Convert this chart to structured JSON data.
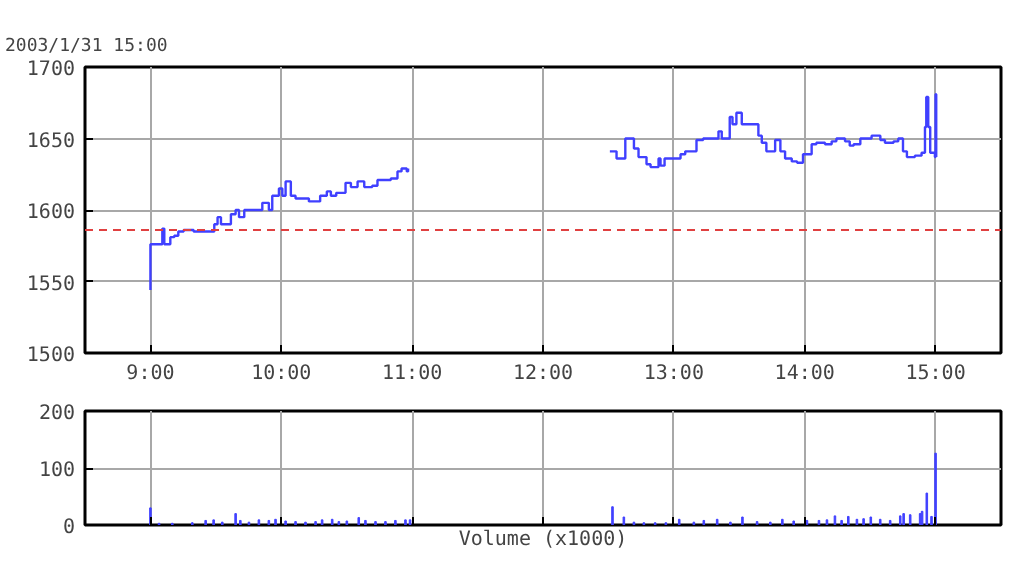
{
  "chart_data": [
    {
      "type": "step",
      "title": "2003/1/31 15:00",
      "color": "#4040ff",
      "x": [
        9.0,
        9.0,
        9.055,
        9.091,
        9.106,
        9.152,
        9.182,
        9.213,
        9.254,
        9.33,
        9.488,
        9.513,
        9.539,
        9.615,
        9.651,
        9.677,
        9.717,
        9.855,
        9.905,
        9.931,
        9.982,
        10.008,
        10.033,
        10.073,
        10.109,
        10.211,
        10.297,
        10.348,
        10.379,
        10.42,
        10.491,
        10.532,
        10.583,
        10.634,
        10.695,
        10.735,
        10.837,
        10.888,
        10.919,
        10.959,
        10.969,
        11.5,
        12.511,
        12.562,
        12.629,
        12.695,
        12.73,
        12.791,
        12.822,
        12.883,
        12.898,
        12.929,
        13.051,
        13.087,
        13.173,
        13.224,
        13.341,
        13.366,
        13.427,
        13.448,
        13.478,
        13.519,
        13.646,
        13.672,
        13.707,
        13.774,
        13.814,
        13.85,
        13.901,
        13.942,
        13.987,
        14.053,
        14.089,
        14.155,
        14.206,
        14.242,
        14.308,
        14.344,
        14.374,
        14.425,
        14.511,
        14.578,
        14.613,
        14.679,
        14.715,
        14.751,
        14.781,
        14.842,
        14.893,
        14.919,
        14.929,
        14.944,
        14.959,
        14.995,
        15.0,
        15.005
      ],
      "values": [
        1544,
        1576,
        1576,
        1587,
        1576,
        1581,
        1582,
        1585,
        1586,
        1585,
        1590,
        1595,
        1590,
        1597,
        1600,
        1595,
        1600,
        1605,
        1600,
        1610,
        1615,
        1610,
        1620,
        1610,
        1608,
        1606,
        1610,
        1613,
        1610,
        1612,
        1619,
        1616,
        1620,
        1616,
        1617,
        1621,
        1622,
        1627,
        1629,
        1627,
        1629,
        null,
        1641,
        1636,
        1650,
        1643,
        1637,
        1632,
        1630,
        1636,
        1631,
        1636,
        1639,
        1641,
        1649,
        1650,
        1655,
        1650,
        1665,
        1660,
        1668,
        1660,
        1652,
        1647,
        1641,
        1649,
        1641,
        1636,
        1634,
        1633,
        1639,
        1646,
        1647,
        1646,
        1648,
        1650,
        1648,
        1645,
        1646,
        1650,
        1652,
        1649,
        1647,
        1648,
        1650,
        1641,
        1637,
        1638,
        1640,
        1658,
        1679,
        1658,
        1640,
        1637,
        1681,
        1637
      ],
      "xlim": [
        8.5,
        15.5
      ],
      "xticks": [
        {
          "value": 9,
          "label": "9:00"
        },
        {
          "value": 10,
          "label": "10:00"
        },
        {
          "value": 11,
          "label": "11:00"
        },
        {
          "value": 12,
          "label": "12:00"
        },
        {
          "value": 13,
          "label": "13:00"
        },
        {
          "value": 14,
          "label": "14:00"
        },
        {
          "value": 15,
          "label": "15:00"
        }
      ],
      "ylim": [
        1500,
        1700
      ],
      "yticks": [
        1500,
        1550,
        1600,
        1650,
        1700
      ],
      "grid": true,
      "ref_lines": [
        {
          "axis": "y",
          "value": 1586,
          "color": "#e04040",
          "line_style": "dashed"
        }
      ]
    },
    {
      "type": "bar",
      "xlabel": "Volume (x1000)",
      "color": "#4040ff",
      "tick_labels": "y",
      "x": [
        9.0,
        9.066,
        9.167,
        9.32,
        9.422,
        9.483,
        9.549,
        9.651,
        9.687,
        9.753,
        9.829,
        9.905,
        9.956,
        10.033,
        10.109,
        10.185,
        10.262,
        10.312,
        10.389,
        10.44,
        10.501,
        10.592,
        10.643,
        10.72,
        10.796,
        10.872,
        10.949,
        10.984,
        12.531,
        12.618,
        12.695,
        12.771,
        12.857,
        12.939,
        13.041,
        13.153,
        13.229,
        13.331,
        13.432,
        13.524,
        13.636,
        13.737,
        13.829,
        13.916,
        14.017,
        14.109,
        14.17,
        14.231,
        14.282,
        14.333,
        14.399,
        14.45,
        14.505,
        14.577,
        14.653,
        14.73,
        14.756,
        14.806,
        14.882,
        14.897,
        14.933,
        14.969,
        15.0
      ],
      "values": [
        30,
        3,
        3,
        4,
        8,
        9,
        5,
        20,
        8,
        5,
        9,
        8,
        10,
        7,
        6,
        5,
        6,
        9,
        10,
        6,
        7,
        13,
        8,
        6,
        6,
        8,
        9,
        9,
        32,
        14,
        5,
        4,
        4,
        4,
        10,
        5,
        8,
        10,
        5,
        14,
        6,
        5,
        10,
        7,
        8,
        8,
        9,
        16,
        8,
        15,
        10,
        11,
        14,
        10,
        8,
        16,
        20,
        18,
        20,
        24,
        56,
        15,
        126
      ],
      "xlim": [
        8.5,
        15.5
      ],
      "xticks": [
        {
          "value": 9,
          "label": null
        },
        {
          "value": 10,
          "label": null
        },
        {
          "value": 11,
          "label": null
        },
        {
          "value": 12,
          "label": null
        },
        {
          "value": 13,
          "label": null
        },
        {
          "value": 14,
          "label": null
        },
        {
          "value": 15,
          "label": null
        }
      ],
      "ylim": [
        0,
        200
      ],
      "yticks": [
        0,
        100,
        200
      ],
      "grid": true
    }
  ]
}
